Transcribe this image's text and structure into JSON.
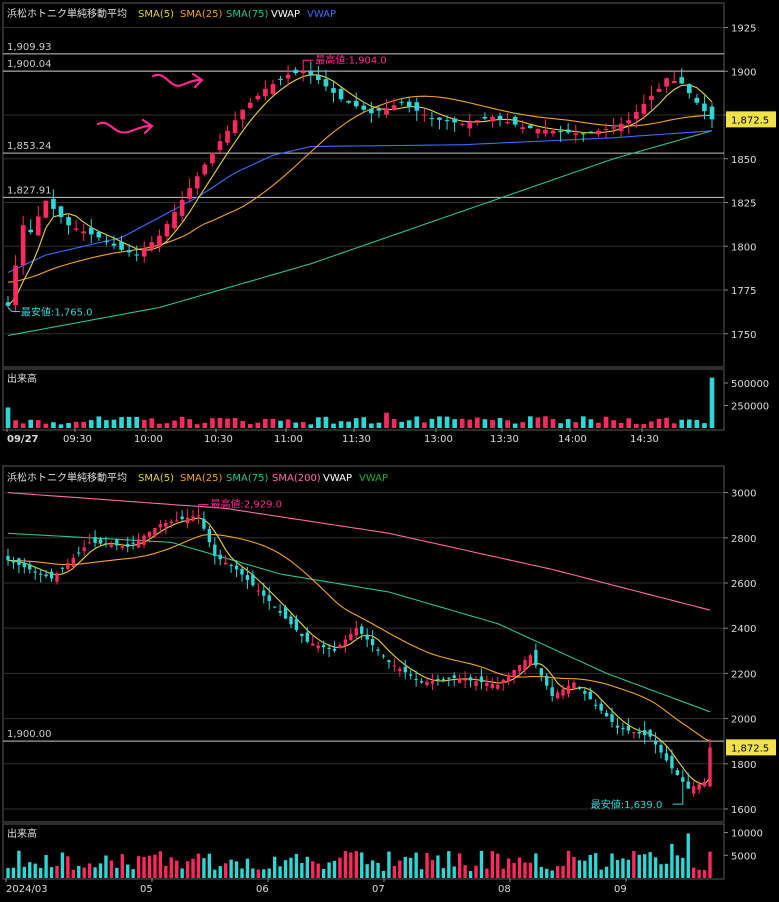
{
  "colors": {
    "background": "#000000",
    "frame": "#5a5a5a",
    "grid": "#303030",
    "text": "#dddddd",
    "up": "#ff2a5f",
    "down": "#2fd6d6",
    "sma5": "#e8d23a",
    "sma25": "#f0a030",
    "sma75": "#30c08a",
    "sma200": "#ff6aa8",
    "vwap": "#ffffff",
    "vwap_blue": "#3a6cff",
    "vwap_green": "#1faa2a",
    "price_label_bg": "#f2e24a",
    "annotation": "#ff2a8f",
    "hline": "#c8c8c8"
  },
  "top_legend": {
    "name": "浜松ホトニク",
    "method": "単純移動平均",
    "sma5": "SMA(5)",
    "sma25": "SMA(25)",
    "sma75": "SMA(75)",
    "vwap1": "VWAP",
    "vwap2": "VWAP"
  },
  "bottom_legend": {
    "name": "浜松ホトニク",
    "method": "単純移動平均",
    "sma5": "SMA(5)",
    "sma25": "SMA(25)",
    "sma75": "SMA(75)",
    "sma200": "SMA(200)",
    "vwap1": "VWAP",
    "vwap2": "VWAP"
  },
  "volume_label_top": "出来高",
  "volume_label_bottom": "出来高",
  "chart_data": [
    {
      "type": "candlestick",
      "title": "浜松ホトニク 単純移動平均 (intraday 5-min)",
      "x_ticks": [
        "09/27",
        "09:30",
        "10:00",
        "10:30",
        "11:00",
        "11:30",
        "13:00",
        "13:30",
        "14:00",
        "14:30"
      ],
      "y_ticks": [
        1750,
        1775,
        1800,
        1825,
        1850,
        1875,
        1900,
        1925
      ],
      "ylim": [
        1735,
        1935
      ],
      "current_price": "1,872.5",
      "current_value": 1872.5,
      "hlines": [
        {
          "value": 1909.93,
          "label": "1,909.93"
        },
        {
          "value": 1900.04,
          "label": "1,900.04"
        },
        {
          "value": 1853.24,
          "label": "1,853.24"
        },
        {
          "value": 1827.91,
          "label": "1,827.91"
        }
      ],
      "high_note": "最高値:1,904.0",
      "high_value": 1904.0,
      "low_note": "最安値:1,765.0",
      "low_value": 1765.0,
      "volume_ticks": [
        "500000",
        "250000"
      ],
      "volume_ticks_values": [
        500000,
        250000
      ],
      "volume_max": 600000
    },
    {
      "type": "candlestick",
      "title": "浜松ホトニク 単純移動平均 (daily)",
      "x_ticks": [
        "2024/03",
        "05",
        "06",
        "07",
        "08",
        "09"
      ],
      "y_ticks": [
        1600,
        1800,
        2000,
        2200,
        2400,
        2600,
        2800,
        3000
      ],
      "ylim": [
        1560,
        3100
      ],
      "current_price": "1,872.5",
      "current_value": 1872.5,
      "hlines": [
        {
          "value": 1900.0,
          "label": "1,900.00"
        }
      ],
      "high_note": "最高値:2,929.0",
      "high_value": 2929.0,
      "low_note": "最安値:1,639.0",
      "low_value": 1639.0,
      "volume_ticks": [
        "10000",
        "5000"
      ],
      "volume_ticks_values": [
        10000,
        5000
      ],
      "volume_max": 11000
    }
  ]
}
